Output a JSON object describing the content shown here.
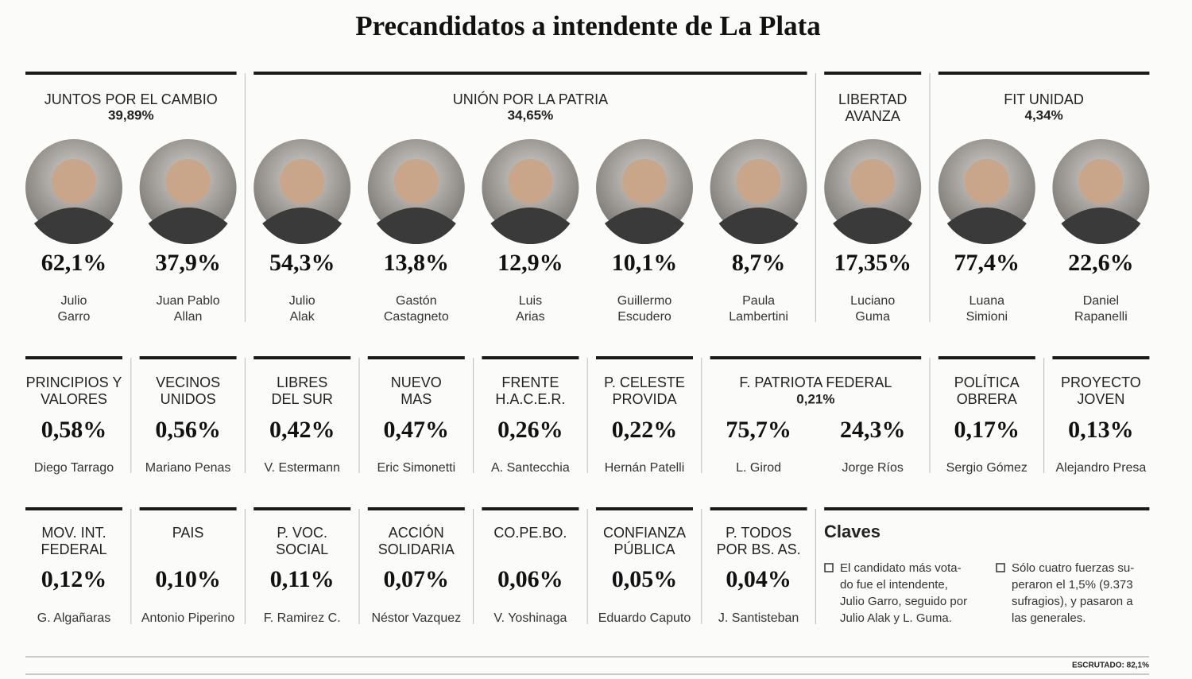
{
  "title": "Precandidatos a intendente de La Plata",
  "row1": [
    {
      "party": [
        "JUNTOS POR EL CAMBIO"
      ],
      "percent": "39,89%",
      "candidates": [
        {
          "percent": "62,1%",
          "name": [
            "Julio",
            "Garro"
          ]
        },
        {
          "percent": "37,9%",
          "name": [
            "Juan Pablo",
            "Allan"
          ]
        }
      ]
    },
    {
      "party": [
        "UNIÓN POR LA PATRIA"
      ],
      "percent": "34,65%",
      "candidates": [
        {
          "percent": "54,3%",
          "name": [
            "Julio",
            "Alak"
          ]
        },
        {
          "percent": "13,8%",
          "name": [
            "Gastón",
            "Castagneto"
          ]
        },
        {
          "percent": "12,9%",
          "name": [
            "Luis",
            "Arias"
          ]
        },
        {
          "percent": "10,1%",
          "name": [
            "Guillermo",
            "Escudero"
          ]
        },
        {
          "percent": "8,7%",
          "name": [
            "Paula",
            "Lambertini"
          ]
        }
      ]
    },
    {
      "party": [
        "LIBERTAD",
        "AVANZA"
      ],
      "candidates": [
        {
          "percent": "17,35%",
          "name": [
            "Luciano",
            "Guma"
          ]
        }
      ]
    },
    {
      "party": [
        "FIT UNIDAD"
      ],
      "percent": "4,34%",
      "candidates": [
        {
          "percent": "77,4%",
          "name": [
            "Luana",
            "Simioni"
          ]
        },
        {
          "percent": "22,6%",
          "name": [
            "Daniel",
            "Rapanelli"
          ]
        }
      ]
    }
  ],
  "row2": [
    {
      "party": [
        "PRINCIPIOS Y",
        "VALORES"
      ],
      "candidates": [
        {
          "percent": "0,58%",
          "name": [
            "Diego Tarrago"
          ]
        }
      ]
    },
    {
      "party": [
        "VECINOS",
        "UNIDOS"
      ],
      "candidates": [
        {
          "percent": "0,56%",
          "name": [
            "Mariano Penas"
          ]
        }
      ]
    },
    {
      "party": [
        "LIBRES",
        "DEL SUR"
      ],
      "candidates": [
        {
          "percent": "0,42%",
          "name": [
            "V. Estermann"
          ]
        }
      ]
    },
    {
      "party": [
        "NUEVO",
        "MAS"
      ],
      "candidates": [
        {
          "percent": "0,47%",
          "name": [
            "Eric Simonetti"
          ]
        }
      ]
    },
    {
      "party": [
        "FRENTE",
        "H.A.C.E.R."
      ],
      "candidates": [
        {
          "percent": "0,26%",
          "name": [
            "A. Santecchia"
          ]
        }
      ]
    },
    {
      "party": [
        "P. CELESTE",
        "PROVIDA"
      ],
      "candidates": [
        {
          "percent": "0,22%",
          "name": [
            "Hernán Patelli"
          ]
        }
      ]
    },
    {
      "party": [
        "F. PATRIOTA FEDERAL"
      ],
      "percent": "0,21%",
      "candidates": [
        {
          "percent": "75,7%",
          "name": [
            "L. Girod"
          ]
        },
        {
          "percent": "24,3%",
          "name": [
            "Jorge Ríos"
          ]
        }
      ]
    },
    {
      "party": [
        "POLÍTICA",
        "OBRERA"
      ],
      "candidates": [
        {
          "percent": "0,17%",
          "name": [
            "Sergio Gómez"
          ]
        }
      ]
    },
    {
      "party": [
        "PROYECTO",
        "JOVEN"
      ],
      "candidates": [
        {
          "percent": "0,13%",
          "name": [
            "Alejandro Presa"
          ]
        }
      ]
    }
  ],
  "row3": [
    {
      "party": [
        "MOV. INT.",
        "FEDERAL"
      ],
      "candidates": [
        {
          "percent": "0,12%",
          "name": [
            "G. Algañaras"
          ]
        }
      ]
    },
    {
      "party": [
        "PAIS"
      ],
      "candidates": [
        {
          "percent": "0,10%",
          "name": [
            "Antonio Piperino"
          ]
        }
      ]
    },
    {
      "party": [
        "P. VOC.",
        "SOCIAL"
      ],
      "candidates": [
        {
          "percent": "0,11%",
          "name": [
            "F. Ramirez C."
          ]
        }
      ]
    },
    {
      "party": [
        "ACCIÓN",
        "SOLIDARIA"
      ],
      "candidates": [
        {
          "percent": "0,07%",
          "name": [
            "Néstor Vazquez"
          ]
        }
      ]
    },
    {
      "party": [
        "CO.PE.BO."
      ],
      "candidates": [
        {
          "percent": "0,06%",
          "name": [
            "V. Yoshinaga"
          ]
        }
      ]
    },
    {
      "party": [
        "CONFIANZA",
        "PÚBLICA"
      ],
      "candidates": [
        {
          "percent": "0,05%",
          "name": [
            "Eduardo Caputo"
          ]
        }
      ]
    },
    {
      "party": [
        "P. TODOS",
        "POR BS. AS."
      ],
      "candidates": [
        {
          "percent": "0,04%",
          "name": [
            "J. Santisteban"
          ]
        }
      ]
    }
  ],
  "claves": {
    "title": "Claves",
    "items": [
      [
        "El candidato más vota-",
        "do fue el intendente,",
        "Julio Garro, seguido por",
        "Julio Alak y L. Guma."
      ],
      [
        "Sólo cuatro fuerzas su-",
        "peraron el 1,5% (9.373",
        "sufragios), y pasaron a",
        "las generales."
      ]
    ]
  },
  "footer": "ESCRUTADO: 82,1%"
}
